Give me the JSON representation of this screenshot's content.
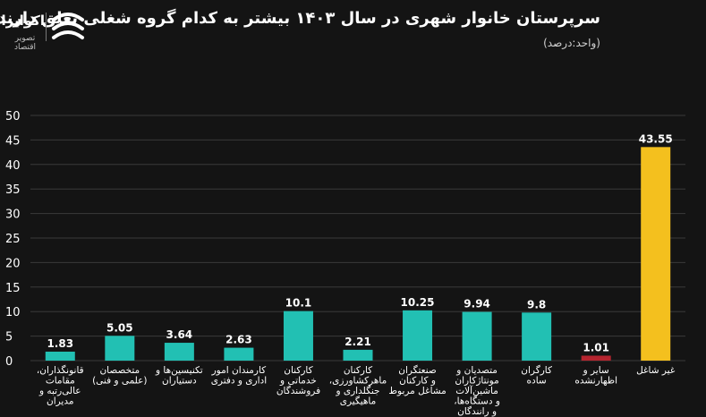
{
  "header": {
    "title": "سرپرستان خانوار شهری در سال ۱۴۰۳ بیشتر به کدام گروه شغلی تعلق دارند؟",
    "subtitle": "(واحد:درصد)"
  },
  "brand": {
    "name": "اکوایران",
    "tagline": "تصویر اقتصاد",
    "logo_icon": "ecoiran-logo-icon"
  },
  "colors": {
    "teal": "#22c0b3",
    "red": "#b5252f",
    "yellow": "#f4c01e",
    "grid": "#3a3a3a",
    "background": "#141414"
  },
  "chart_data": {
    "type": "bar",
    "title": "سرپرستان خانوار شهری در سال ۱۴۰۳ بیشتر به کدام گروه شغلی تعلق دارند؟",
    "ylabel": "(واحد:درصد)",
    "xlabel": "",
    "ylim": [
      0,
      50
    ],
    "yticks": [
      0,
      5,
      10,
      15,
      20,
      25,
      30,
      35,
      40,
      45,
      50
    ],
    "ytick_labels": [
      "0",
      "5",
      "10",
      "15",
      "20",
      "25",
      "30",
      "35",
      "40",
      "45",
      "50"
    ],
    "grid": true,
    "categories": [
      [
        "قانونگذاران،",
        "مقامات",
        "عالی‌رتبه و",
        "مدیران"
      ],
      [
        "متخصصان",
        "(علمی و فنی)"
      ],
      [
        "تکنیسین‌ها و",
        "دستیاران"
      ],
      [
        "کارمندان امور",
        "اداری و دفتری"
      ],
      [
        "کارکنان",
        "خدماتی و",
        "فروشندگان"
      ],
      [
        "کارکنان",
        "ماهرکشاورزی،",
        "جنگلداری و",
        "ماهیگیری"
      ],
      [
        "صنعتگران",
        "و کارکنان",
        "مشاغل مربوط"
      ],
      [
        "متصدیان و",
        "مونتاژکاران",
        "ماشین‌آلات",
        "و دستگاه‌ها،",
        "و رانندگان"
      ],
      [
        "کارگران",
        "ساده"
      ],
      [
        "سایر و",
        "اظهارنشده"
      ],
      [
        "غیر شاغل"
      ]
    ],
    "values": [
      1.83,
      5.05,
      3.64,
      2.63,
      10.1,
      2.21,
      10.25,
      9.94,
      9.8,
      1.01,
      43.55
    ],
    "value_labels": [
      "1.83",
      "5.05",
      "3.64",
      "2.63",
      "10.1",
      "2.21",
      "10.25",
      "9.94",
      "9.8",
      "1.01",
      "43.55"
    ],
    "bar_colors": [
      "teal",
      "teal",
      "teal",
      "teal",
      "teal",
      "teal",
      "teal",
      "teal",
      "teal",
      "red",
      "yellow"
    ]
  }
}
